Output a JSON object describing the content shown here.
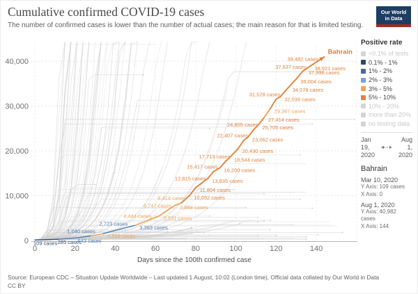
{
  "header": {
    "title": "Cumulative confirmed COVID-19 cases",
    "subtitle": "The number of confirmed cases is lower than the number of actual cases; the main reason for that is limited testing.",
    "logo": {
      "line1": "Our World",
      "line2": "in Data"
    }
  },
  "colors": {
    "navy": "#2f4f71",
    "blue": "#4f79ae",
    "lightOrange": "#f0a455",
    "orange": "#e0813c",
    "inactiveGray": "#d4d4d4",
    "gridGray": "#e3e3e3",
    "bgLine": "#d0d0d0",
    "axis": "#b5b5b5"
  },
  "chart_data": {
    "type": "line",
    "title": "Cumulative confirmed COVID-19 cases",
    "xlabel": "Days since the 100th confirmed case",
    "ylabel": "",
    "xlim": [
      0,
      160
    ],
    "ylim": [
      0,
      43800
    ],
    "grid": true,
    "x_ticks": [
      0,
      20,
      40,
      60,
      80,
      100,
      120,
      140
    ],
    "y_ticks": [
      "0",
      "10,000",
      "20,000",
      "30,000",
      "40,000"
    ],
    "y_tick_values": [
      0,
      10000,
      20000,
      30000,
      40000
    ],
    "end_label": "Bahrain",
    "series": [
      {
        "name": "Bahrain",
        "points": [
          {
            "day": 0,
            "value": 109,
            "label": "109 cases",
            "side": "bottom",
            "color": "navy"
          },
          {
            "day": 12,
            "value": 285,
            "label": "285 cases",
            "side": "bottom",
            "color": "navy"
          },
          {
            "day": 22,
            "value": 643,
            "label": "643 cases",
            "side": "bottom",
            "color": "blue"
          },
          {
            "day": 28,
            "value": 1040,
            "label": "1,040 cases",
            "side": "left",
            "color": "blue"
          },
          {
            "day": 34,
            "value": 1528,
            "label": "1,528 cases",
            "side": "right",
            "color": "lightOrange"
          },
          {
            "day": 44,
            "value": 2723,
            "label": "2,723 cases",
            "side": "left",
            "color": "blue"
          },
          {
            "day": 50,
            "value": 3383,
            "label": "3,383 cases",
            "side": "right",
            "color": "blue"
          },
          {
            "day": 56,
            "value": 4444,
            "label": "4,444 cases",
            "side": "left",
            "color": "lightOrange"
          },
          {
            "day": 62,
            "value": 5531,
            "label": "5,531 cases",
            "side": "right",
            "color": "lightOrange"
          },
          {
            "day": 66,
            "value": 6747,
            "label": "6,747 cases",
            "side": "left",
            "color": "lightOrange"
          },
          {
            "day": 70,
            "value": 7888,
            "label": "7,888 cases",
            "side": "right",
            "color": "lightOrange"
          },
          {
            "day": 73,
            "value": 8414,
            "label": "8,414 cases",
            "side": "left",
            "color": "lightOrange"
          },
          {
            "day": 77,
            "value": 10052,
            "label": "10,052 cases",
            "side": "right",
            "color": "orange"
          },
          {
            "day": 80,
            "value": 11804,
            "label": "11,804 cases",
            "side": "right",
            "color": "orange"
          },
          {
            "day": 83,
            "value": 12815,
            "label": "12,815 cases",
            "side": "left",
            "color": "orange"
          },
          {
            "day": 86,
            "value": 13835,
            "label": "13,835 cases",
            "side": "right",
            "color": "orange"
          },
          {
            "day": 89,
            "value": 15417,
            "label": "15,417 cases",
            "side": "left",
            "color": "orange"
          },
          {
            "day": 92,
            "value": 16200,
            "label": "16,200 cases",
            "side": "right",
            "color": "orange"
          },
          {
            "day": 95,
            "value": 17713,
            "label": "17,713 cases",
            "side": "left",
            "color": "orange"
          },
          {
            "day": 97,
            "value": 18544,
            "label": "18,544 cases",
            "side": "right",
            "color": "orange"
          },
          {
            "day": 101,
            "value": 20430,
            "label": "20,430 cases",
            "side": "right",
            "color": "orange"
          },
          {
            "day": 104,
            "value": 22407,
            "label": "22,407 cases",
            "side": "left",
            "color": "orange"
          },
          {
            "day": 106,
            "value": 23062,
            "label": "23,062 cases",
            "side": "right",
            "color": "orange"
          },
          {
            "day": 109,
            "value": 24805,
            "label": "24,805 cases",
            "side": "left",
            "color": "orange"
          },
          {
            "day": 111,
            "value": 25705,
            "label": "25,705 cases",
            "side": "right",
            "color": "orange"
          },
          {
            "day": 114,
            "value": 27414,
            "label": "27,414 cases",
            "side": "right",
            "color": "orange"
          },
          {
            "day": 117,
            "value": 29367,
            "label": "29,367 cases",
            "side": "right",
            "color": "lightOrange"
          },
          {
            "day": 120,
            "value": 31528,
            "label": "31,528 cases",
            "side": "left",
            "color": "orange"
          },
          {
            "day": 122,
            "value": 32039,
            "label": "32,039 cases",
            "side": "right",
            "color": "orange"
          },
          {
            "day": 126,
            "value": 34078,
            "label": "34,078 cases",
            "side": "right",
            "color": "orange"
          },
          {
            "day": 130,
            "value": 36004,
            "label": "36,004 cases",
            "side": "right",
            "color": "orange"
          },
          {
            "day": 133,
            "value": 37637,
            "label": "37,637 cases",
            "side": "left",
            "color": "orange"
          },
          {
            "day": 134,
            "value": 37996,
            "label": "37,996 cases",
            "side": "right",
            "color": "orange"
          },
          {
            "day": 137,
            "value": 38921,
            "label": "38,921 cases",
            "side": "right",
            "color": "orange"
          },
          {
            "day": 139,
            "value": 39482,
            "label": "39,482 cases",
            "side": "left",
            "color": "orange"
          },
          {
            "day": 144,
            "value": 40982,
            "label": null,
            "side": null,
            "color": "orange"
          }
        ]
      }
    ],
    "background_series": {
      "description": "unlabeled light-gray trajectories of all other countries",
      "count": 130
    }
  },
  "legend": {
    "title": "Positive rate",
    "items": [
      {
        "label": "<0.1% of tests",
        "active": false
      },
      {
        "label": "0.1% - 1%",
        "active": true,
        "color": "#2a4a6d"
      },
      {
        "label": "1% - 2%",
        "active": true,
        "color": "#45699a"
      },
      {
        "label": "2% - 3%",
        "active": true,
        "color": "#7ca0cc"
      },
      {
        "label": "3% - 5%",
        "active": true,
        "color": "#f2a351"
      },
      {
        "label": "5% - 10%",
        "active": true,
        "color": "#e57e3a"
      },
      {
        "label": "10% - 20%",
        "active": false
      },
      {
        "label": "more than 20%",
        "active": false
      },
      {
        "label": "no testing data",
        "active": false
      }
    ]
  },
  "timeline": {
    "start": {
      "month": "Jan",
      "day": "19,",
      "year": "2020"
    },
    "end": {
      "month": "Aug",
      "day": "1,",
      "year": "2020"
    }
  },
  "info": {
    "country": "Bahrain",
    "entries": [
      {
        "date": "Mar 10, 2020",
        "y": "Y Axis: 109 cases",
        "x": "X Axis: 0"
      },
      {
        "date": "Aug 1, 2020",
        "y": "Y Axis: 40,982 cases",
        "x": "X Axis: 144"
      }
    ]
  },
  "footer": {
    "line1": "Source: European CDC – Situation Update Worldwide – Last updated 1 August, 10:02 (London time), Official data collated by Our World in Data",
    "line2": "CC BY"
  }
}
